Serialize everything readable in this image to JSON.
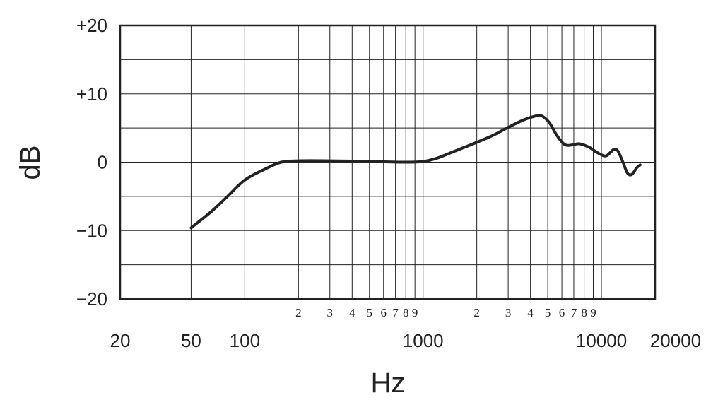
{
  "chart_data": {
    "type": "line",
    "xlabel": "Hz",
    "ylabel": "dB",
    "x_scale": "log",
    "xlim": [
      20,
      20000
    ],
    "ylim": [
      -20,
      20
    ],
    "grid": true,
    "y_ticks": [
      {
        "value": 20,
        "label": "+20"
      },
      {
        "value": 10,
        "label": "+10"
      },
      {
        "value": 0,
        "label": "0"
      },
      {
        "value": -10,
        "label": "−10"
      },
      {
        "value": -20,
        "label": "−20"
      }
    ],
    "y_minor_ticks": [
      15,
      5,
      -5,
      -15
    ],
    "x_major_ticks": [
      {
        "value": 20,
        "label": "20"
      },
      {
        "value": 50,
        "label": "50"
      },
      {
        "value": 100,
        "label": "100"
      },
      {
        "value": 1000,
        "label": "1000"
      },
      {
        "value": 10000,
        "label": "10000"
      },
      {
        "value": 20000,
        "label": "20000"
      }
    ],
    "x_minor_ticks": [
      {
        "value": 200,
        "label": "2"
      },
      {
        "value": 300,
        "label": "3"
      },
      {
        "value": 400,
        "label": "4"
      },
      {
        "value": 500,
        "label": "5"
      },
      {
        "value": 600,
        "label": "6"
      },
      {
        "value": 700,
        "label": "7"
      },
      {
        "value": 800,
        "label": "8"
      },
      {
        "value": 900,
        "label": "9"
      },
      {
        "value": 2000,
        "label": "2"
      },
      {
        "value": 3000,
        "label": "3"
      },
      {
        "value": 4000,
        "label": "4"
      },
      {
        "value": 5000,
        "label": "5"
      },
      {
        "value": 6000,
        "label": "6"
      },
      {
        "value": 7000,
        "label": "7"
      },
      {
        "value": 8000,
        "label": "8"
      },
      {
        "value": 9000,
        "label": "9"
      }
    ],
    "series": [
      {
        "points": [
          [
            50,
            -9.6
          ],
          [
            65,
            -7.2
          ],
          [
            80,
            -5.0
          ],
          [
            100,
            -2.6
          ],
          [
            130,
            -1.0
          ],
          [
            160,
            0.0
          ],
          [
            200,
            0.2
          ],
          [
            300,
            0.2
          ],
          [
            500,
            0.1
          ],
          [
            800,
            0.0
          ],
          [
            1000,
            0.1
          ],
          [
            1200,
            0.6
          ],
          [
            1500,
            1.6
          ],
          [
            2000,
            2.9
          ],
          [
            2500,
            4.0
          ],
          [
            3000,
            5.1
          ],
          [
            3600,
            6.1
          ],
          [
            4200,
            6.7
          ],
          [
            4600,
            6.8
          ],
          [
            5100,
            5.8
          ],
          [
            5600,
            4.0
          ],
          [
            6200,
            2.6
          ],
          [
            6800,
            2.5
          ],
          [
            7500,
            2.7
          ],
          [
            8500,
            2.2
          ],
          [
            9500,
            1.4
          ],
          [
            10500,
            0.9
          ],
          [
            11200,
            1.4
          ],
          [
            11800,
            1.9
          ],
          [
            12400,
            1.6
          ],
          [
            13200,
            0.0
          ],
          [
            14000,
            -1.6
          ],
          [
            14800,
            -1.8
          ],
          [
            15800,
            -0.8
          ],
          [
            16500,
            -0.4
          ]
        ]
      }
    ]
  }
}
